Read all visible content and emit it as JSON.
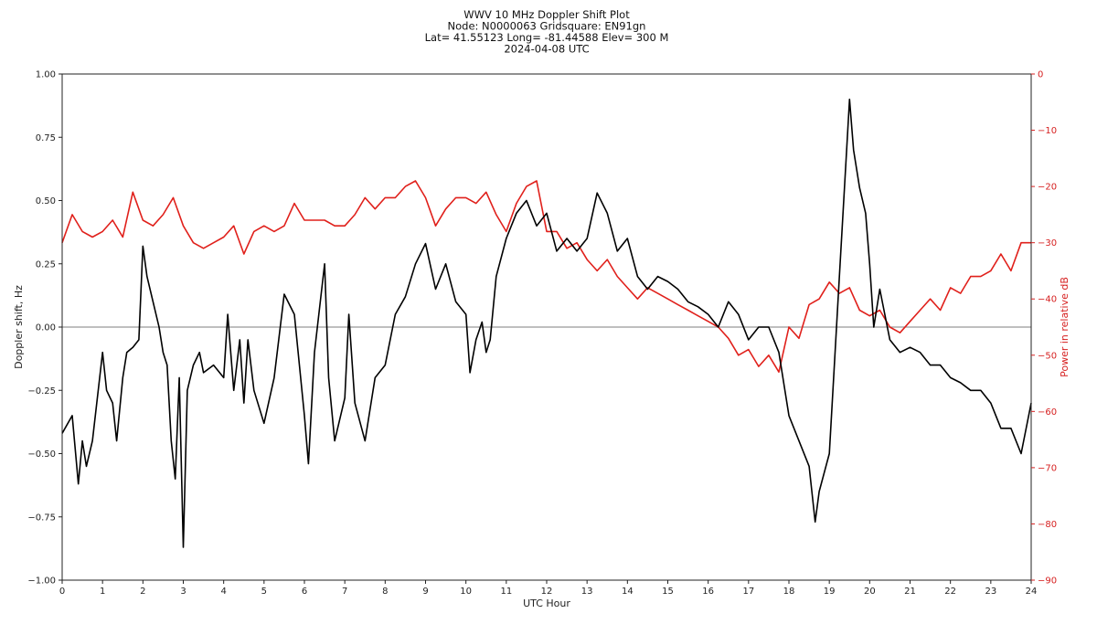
{
  "chart_data": {
    "type": "line",
    "title_lines": [
      "WWV 10 MHz Doppler Shift Plot",
      "Node:  N0000063     Gridsquare:  EN91gn",
      "Lat= 41.55123     Long= -81.44588     Elev= 300 M",
      "2024-04-08  UTC"
    ],
    "xlabel": "UTC Hour",
    "ylabel": "Doppler shift, Hz",
    "y2label": "Power in relative dB",
    "xlim": [
      0,
      24
    ],
    "ylim": [
      -1.0,
      1.0
    ],
    "y2lim": [
      -90,
      0
    ],
    "xticks": [
      "0",
      "1",
      "2",
      "3",
      "4",
      "5",
      "6",
      "7",
      "8",
      "9",
      "10",
      "11",
      "12",
      "13",
      "14",
      "15",
      "16",
      "17",
      "18",
      "19",
      "20",
      "21",
      "22",
      "23",
      "24"
    ],
    "yticks": [
      "1.00",
      "0.75",
      "0.50",
      "0.25",
      "0.00",
      "−0.25",
      "−0.50",
      "−0.75",
      "−1.00"
    ],
    "y2ticks": [
      "0",
      "−10",
      "−20",
      "−30",
      "−40",
      "−50",
      "−60",
      "−70",
      "−80",
      "−90"
    ],
    "zero_line": true,
    "colors": {
      "doppler": "#000000",
      "power": "#e0201b",
      "zero": "#999999",
      "right_axis": "#d62020"
    },
    "series": [
      {
        "name": "Doppler shift",
        "axis": "left",
        "x": [
          0,
          0.25,
          0.4,
          0.5,
          0.6,
          0.75,
          1.0,
          1.1,
          1.25,
          1.35,
          1.5,
          1.6,
          1.75,
          1.9,
          2.0,
          2.1,
          2.25,
          2.4,
          2.5,
          2.6,
          2.7,
          2.8,
          2.9,
          3.0,
          3.1,
          3.25,
          3.4,
          3.5,
          3.75,
          4.0,
          4.1,
          4.25,
          4.4,
          4.5,
          4.6,
          4.75,
          5.0,
          5.25,
          5.5,
          5.75,
          6.0,
          6.1,
          6.25,
          6.5,
          6.6,
          6.75,
          7.0,
          7.1,
          7.25,
          7.5,
          7.75,
          8.0,
          8.25,
          8.5,
          8.75,
          9.0,
          9.25,
          9.5,
          9.75,
          10.0,
          10.1,
          10.25,
          10.4,
          10.5,
          10.6,
          10.75,
          11.0,
          11.25,
          11.5,
          11.75,
          12.0,
          12.25,
          12.5,
          12.75,
          13.0,
          13.25,
          13.5,
          13.75,
          14.0,
          14.25,
          14.5,
          14.75,
          15.0,
          15.25,
          15.5,
          15.75,
          16.0,
          16.25,
          16.5,
          16.75,
          17.0,
          17.25,
          17.5,
          17.75,
          18.0,
          18.25,
          18.5,
          18.65,
          18.75,
          19.0,
          19.25,
          19.5,
          19.6,
          19.75,
          19.9,
          20.0,
          20.1,
          20.25,
          20.5,
          20.75,
          21.0,
          21.25,
          21.5,
          21.75,
          22.0,
          22.25,
          22.5,
          22.75,
          23.0,
          23.25,
          23.5,
          23.75,
          24.0
        ],
        "y": [
          -0.42,
          -0.35,
          -0.62,
          -0.45,
          -0.55,
          -0.45,
          -0.1,
          -0.25,
          -0.3,
          -0.45,
          -0.2,
          -0.1,
          -0.08,
          -0.05,
          0.32,
          0.2,
          0.1,
          0.0,
          -0.1,
          -0.15,
          -0.45,
          -0.6,
          -0.2,
          -0.87,
          -0.25,
          -0.15,
          -0.1,
          -0.18,
          -0.15,
          -0.2,
          0.05,
          -0.25,
          -0.05,
          -0.3,
          -0.05,
          -0.25,
          -0.38,
          -0.2,
          0.13,
          0.05,
          -0.35,
          -0.54,
          -0.1,
          0.25,
          -0.2,
          -0.45,
          -0.28,
          0.05,
          -0.3,
          -0.45,
          -0.2,
          -0.15,
          0.05,
          0.12,
          0.25,
          0.33,
          0.15,
          0.25,
          0.1,
          0.05,
          -0.18,
          -0.05,
          0.02,
          -0.1,
          -0.05,
          0.2,
          0.35,
          0.45,
          0.5,
          0.4,
          0.45,
          0.3,
          0.35,
          0.3,
          0.35,
          0.53,
          0.45,
          0.3,
          0.35,
          0.2,
          0.15,
          0.2,
          0.18,
          0.15,
          0.1,
          0.08,
          0.05,
          0.0,
          0.1,
          0.05,
          -0.05,
          0.0,
          0.0,
          -0.1,
          -0.35,
          -0.45,
          -0.55,
          -0.77,
          -0.65,
          -0.5,
          0.2,
          0.9,
          0.7,
          0.55,
          0.45,
          0.25,
          0.0,
          0.15,
          -0.05,
          -0.1,
          -0.08,
          -0.1,
          -0.15,
          -0.15,
          -0.2,
          -0.22,
          -0.25,
          -0.25,
          -0.3,
          -0.4,
          -0.4,
          -0.5,
          -0.3
        ]
      },
      {
        "name": "Power",
        "axis": "right",
        "x": [
          0,
          0.25,
          0.5,
          0.75,
          1,
          1.25,
          1.5,
          1.75,
          2,
          2.25,
          2.5,
          2.75,
          3,
          3.25,
          3.5,
          3.75,
          4,
          4.25,
          4.5,
          4.75,
          5,
          5.25,
          5.5,
          5.75,
          6,
          6.25,
          6.5,
          6.75,
          7,
          7.25,
          7.5,
          7.75,
          8,
          8.25,
          8.5,
          8.75,
          9,
          9.25,
          9.5,
          9.75,
          10,
          10.25,
          10.5,
          10.75,
          11,
          11.25,
          11.5,
          11.75,
          12,
          12.25,
          12.5,
          12.75,
          13,
          13.25,
          13.5,
          13.75,
          14,
          14.25,
          14.5,
          14.75,
          15,
          15.25,
          15.5,
          15.75,
          16,
          16.25,
          16.5,
          16.75,
          17,
          17.25,
          17.5,
          17.75,
          18,
          18.25,
          18.5,
          18.75,
          19,
          19.25,
          19.5,
          19.75,
          20,
          20.25,
          20.5,
          20.75,
          21,
          21.25,
          21.5,
          21.75,
          22,
          22.25,
          22.5,
          22.75,
          23,
          23.25,
          23.5,
          23.75,
          24
        ],
        "y": [
          -30,
          -25,
          -28,
          -29,
          -28,
          -26,
          -29,
          -21,
          -26,
          -27,
          -25,
          -22,
          -27,
          -30,
          -31,
          -30,
          -29,
          -27,
          -32,
          -28,
          -27,
          -28,
          -27,
          -23,
          -26,
          -26,
          -26,
          -27,
          -27,
          -25,
          -22,
          -24,
          -22,
          -22,
          -20,
          -19,
          -22,
          -27,
          -24,
          -22,
          -22,
          -23,
          -21,
          -25,
          -28,
          -23,
          -20,
          -19,
          -28,
          -28,
          -31,
          -30,
          -33,
          -35,
          -33,
          -36,
          -38,
          -40,
          -38,
          -39,
          -40,
          -41,
          -42,
          -43,
          -44,
          -45,
          -47,
          -50,
          -49,
          -52,
          -50,
          -53,
          -45,
          -47,
          -41,
          -40,
          -37,
          -39,
          -38,
          -42,
          -43,
          -42,
          -45,
          -46,
          -44,
          -42,
          -40,
          -42,
          -38,
          -39,
          -36,
          -36,
          -35,
          -32,
          -35,
          -30,
          -30
        ]
      }
    ]
  }
}
